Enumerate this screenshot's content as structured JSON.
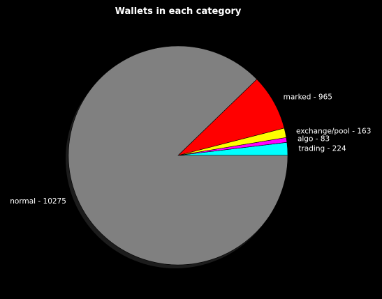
{
  "chart_data": {
    "type": "pie",
    "title": "Wallets in each category",
    "slices": [
      {
        "label": "trading - 224",
        "category": "trading",
        "value": 224,
        "color": "#00ffff"
      },
      {
        "label": "algo - 83",
        "category": "algo",
        "value": 83,
        "color": "#ff00ff"
      },
      {
        "label": "exchange/pool - 163",
        "category": "exchange/pool",
        "value": 163,
        "color": "#ffff00"
      },
      {
        "label": "marked - 965",
        "category": "marked",
        "value": 965,
        "color": "#ff0000"
      },
      {
        "label": "normal - 10275",
        "category": "normal",
        "value": 10275,
        "color": "#808080"
      }
    ],
    "start_angle_deg": 0,
    "direction": "counterclockwise",
    "shadow": true,
    "edge_color": "#000000",
    "background": "#000000",
    "text_color": "#ffffff"
  }
}
